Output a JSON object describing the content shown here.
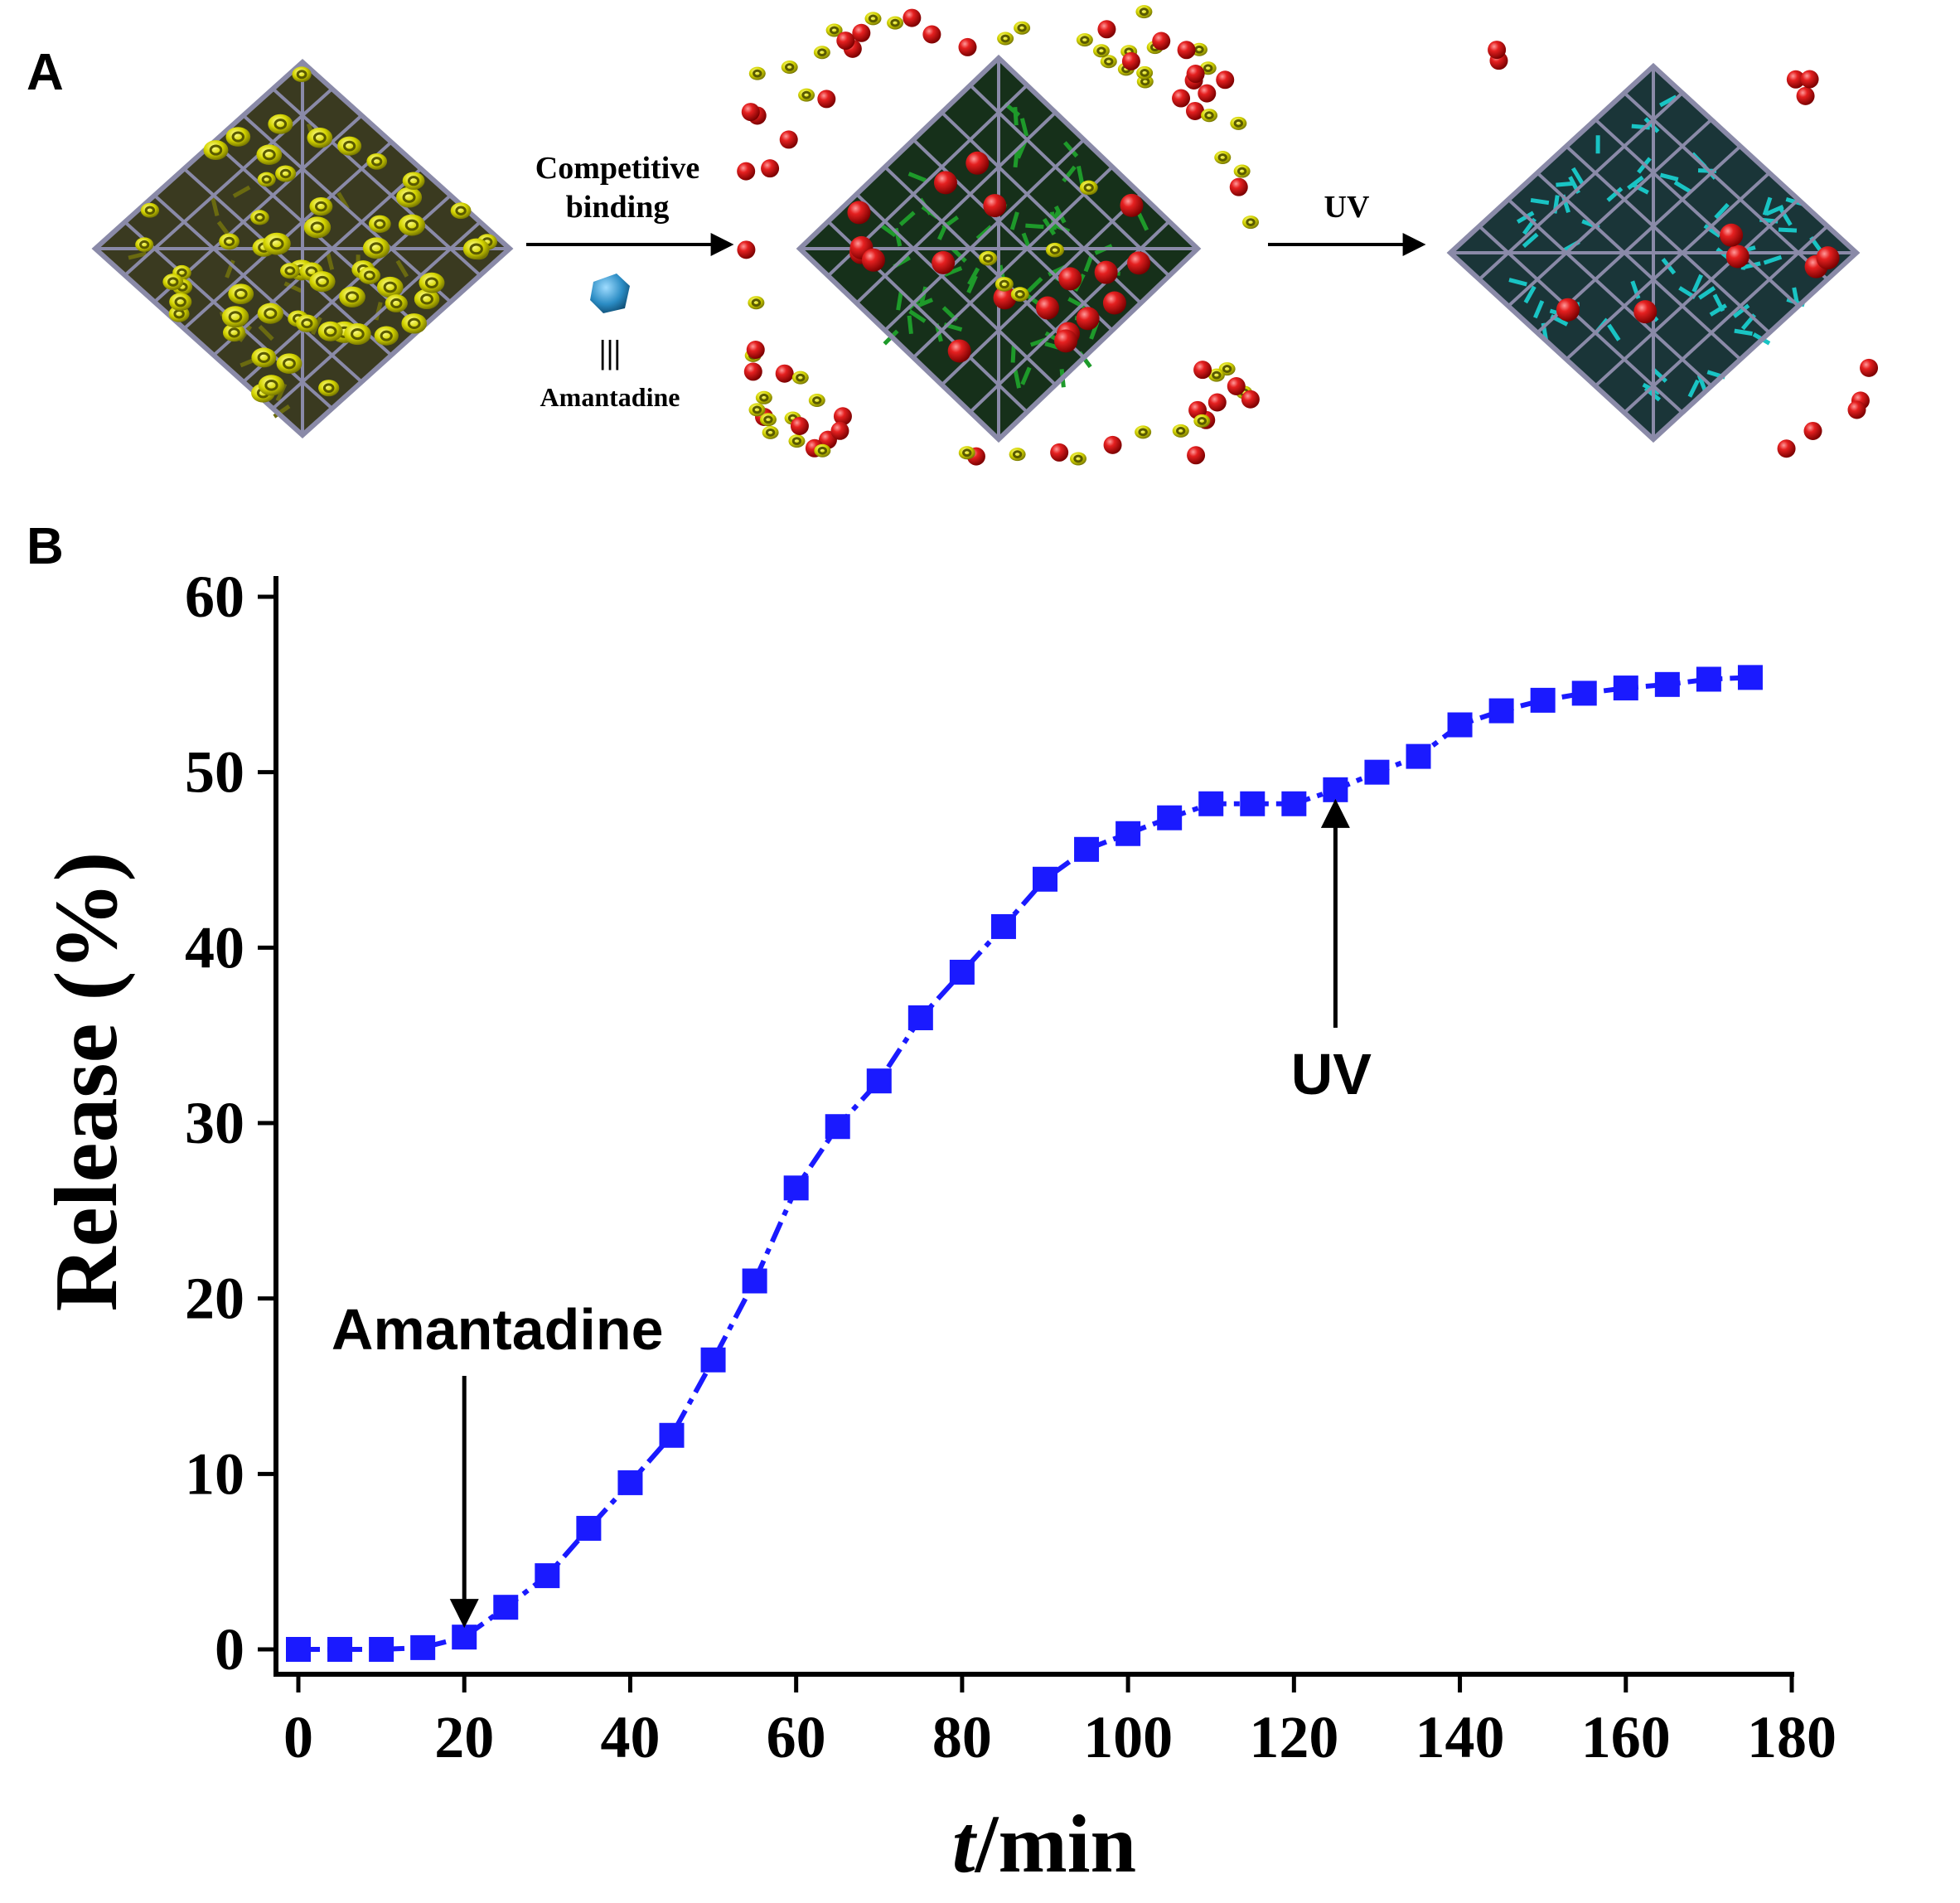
{
  "panel_a": {
    "label": "A",
    "step1_label_line1": "Competitive",
    "step1_label_line2": "binding",
    "legend_equiv": "|||",
    "legend_name": "Amantadine",
    "step2_label": "UV"
  },
  "panel_b": {
    "label": "B"
  },
  "colors": {
    "series": "#1a1aff",
    "sphere": "#d81818",
    "cap": "#c8c800",
    "frame": "#8a8aa8",
    "linker_green": "#1e9a2a",
    "linker_cyan": "#19c4c4",
    "amantadine": "#2b8cc4"
  },
  "chart_data": {
    "type": "line",
    "xlabel_italic": "t",
    "xlabel_rest": "/min",
    "ylabel": "Release (%)",
    "xlim": [
      0,
      180
    ],
    "ylim": [
      0,
      60
    ],
    "x_ticks": [
      "0",
      "20",
      "40",
      "60",
      "80",
      "100",
      "120",
      "140",
      "160",
      "180"
    ],
    "y_ticks": [
      "0",
      "10",
      "20",
      "30",
      "40",
      "50",
      "60"
    ],
    "series": [
      {
        "name": "Release",
        "marker": "square",
        "line": "dash-dot",
        "x": [
          0,
          5,
          10,
          15,
          20,
          25,
          30,
          35,
          40,
          45,
          50,
          55,
          60,
          65,
          70,
          75,
          80,
          85,
          90,
          95,
          100,
          105,
          110,
          115,
          120,
          125,
          130,
          135,
          140,
          145,
          150,
          155,
          160,
          165,
          170,
          175
        ],
        "y": [
          0,
          0,
          0,
          0.1,
          0.7,
          2.4,
          4.2,
          6.9,
          9.5,
          12.2,
          16.5,
          21.0,
          26.3,
          29.8,
          32.4,
          36.0,
          38.6,
          41.2,
          43.9,
          45.6,
          46.5,
          47.4,
          48.2,
          48.2,
          48.2,
          49.0,
          50.0,
          50.9,
          52.7,
          53.5,
          54.1,
          54.5,
          54.8,
          55.0,
          55.3,
          55.4
        ]
      }
    ],
    "annotations": [
      {
        "text": "Amantadine",
        "x": 20,
        "direction": "down"
      },
      {
        "text": "UV",
        "x": 125,
        "direction": "up"
      }
    ]
  }
}
